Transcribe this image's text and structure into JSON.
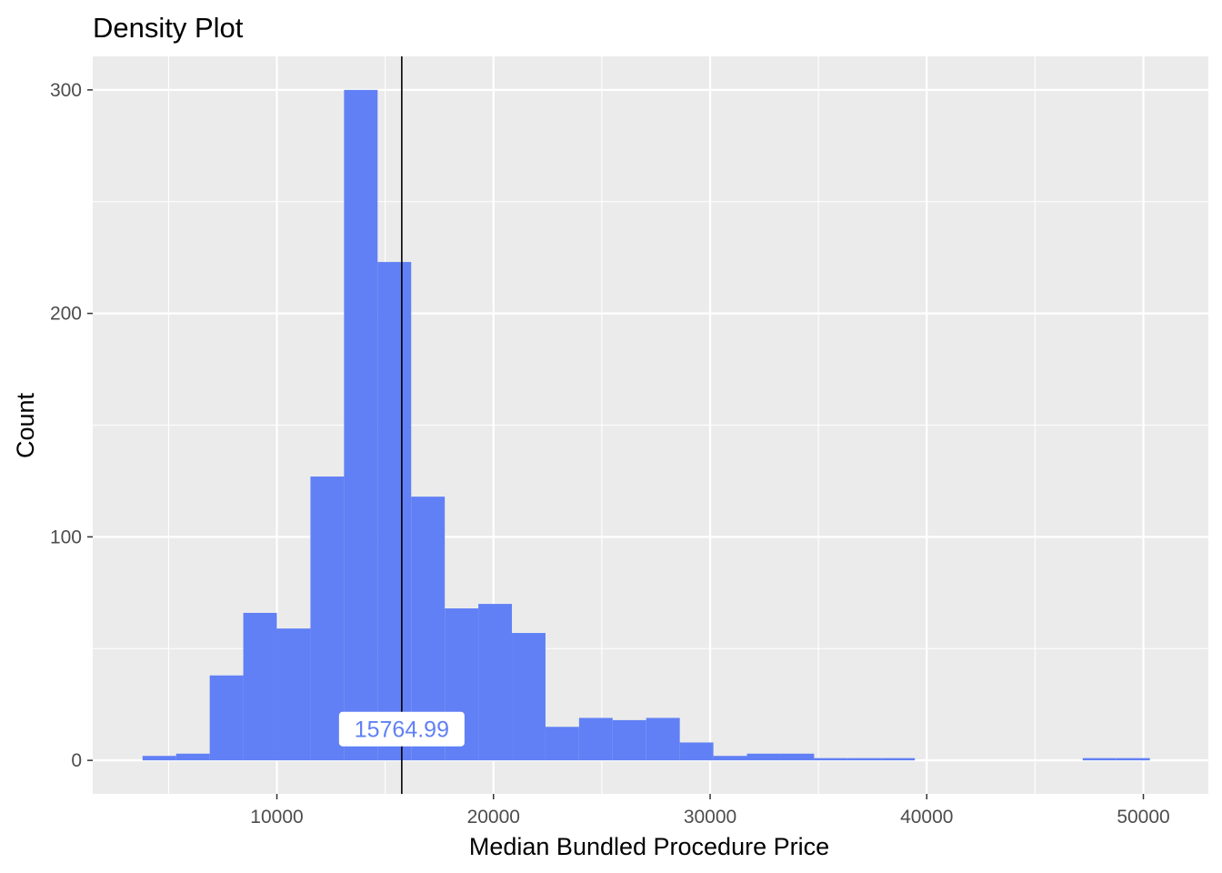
{
  "chart_data": {
    "type": "bar",
    "title": "Density Plot",
    "xlabel": "Median Bundled Procedure Price",
    "ylabel": "Count",
    "xlim": [
      1500,
      53000
    ],
    "ylim": [
      -15,
      315
    ],
    "x_ticks": [
      10000,
      20000,
      30000,
      40000,
      50000
    ],
    "x_tick_labels": [
      "10000",
      "20000",
      "30000",
      "40000",
      "50000"
    ],
    "y_ticks": [
      0,
      100,
      200,
      300
    ],
    "y_tick_labels": [
      "0",
      "100",
      "200",
      "300"
    ],
    "bin_width": 1550,
    "bin_start": 3800,
    "bins": [
      {
        "x0": 3800,
        "x1": 5350,
        "count": 2
      },
      {
        "x0": 5350,
        "x1": 6900,
        "count": 3
      },
      {
        "x0": 6900,
        "x1": 8450,
        "count": 38
      },
      {
        "x0": 8450,
        "x1": 10000,
        "count": 66
      },
      {
        "x0": 10000,
        "x1": 11550,
        "count": 59
      },
      {
        "x0": 11550,
        "x1": 13100,
        "count": 127
      },
      {
        "x0": 13100,
        "x1": 14650,
        "count": 300
      },
      {
        "x0": 14650,
        "x1": 16200,
        "count": 223
      },
      {
        "x0": 16200,
        "x1": 17750,
        "count": 118
      },
      {
        "x0": 17750,
        "x1": 19300,
        "count": 68
      },
      {
        "x0": 19300,
        "x1": 20850,
        "count": 70
      },
      {
        "x0": 20850,
        "x1": 22400,
        "count": 57
      },
      {
        "x0": 22400,
        "x1": 23950,
        "count": 15
      },
      {
        "x0": 23950,
        "x1": 25500,
        "count": 19
      },
      {
        "x0": 25500,
        "x1": 27050,
        "count": 18
      },
      {
        "x0": 27050,
        "x1": 28600,
        "count": 19
      },
      {
        "x0": 28600,
        "x1": 30150,
        "count": 8
      },
      {
        "x0": 30150,
        "x1": 31700,
        "count": 2
      },
      {
        "x0": 31700,
        "x1": 33250,
        "count": 3
      },
      {
        "x0": 33250,
        "x1": 34800,
        "count": 3
      },
      {
        "x0": 34800,
        "x1": 36350,
        "count": 1
      },
      {
        "x0": 36350,
        "x1": 37900,
        "count": 1
      },
      {
        "x0": 37900,
        "x1": 39450,
        "count": 1
      },
      {
        "x0": 39450,
        "x1": 41000,
        "count": 0
      },
      {
        "x0": 41000,
        "x1": 42550,
        "count": 0
      },
      {
        "x0": 42550,
        "x1": 44100,
        "count": 0
      },
      {
        "x0": 44100,
        "x1": 45650,
        "count": 0
      },
      {
        "x0": 45650,
        "x1": 47200,
        "count": 0
      },
      {
        "x0": 47200,
        "x1": 48750,
        "count": 1
      },
      {
        "x0": 48750,
        "x1": 50300,
        "count": 1
      }
    ],
    "vline": {
      "x": 15764.99,
      "label": "15764.99",
      "label_y": 14
    },
    "grid": true,
    "legend": "none",
    "colors": {
      "bar": "#6180f5",
      "panel": "#ebebeb",
      "grid": "#ffffff",
      "vline": "#000000",
      "label_text": "#6180f5",
      "label_bg": "#ffffff",
      "tick_text": "#4d4d4d"
    }
  }
}
